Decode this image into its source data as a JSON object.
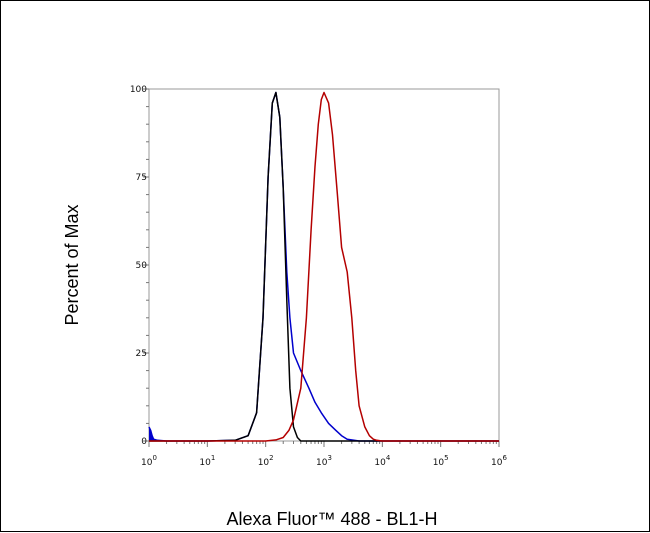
{
  "chart_data": {
    "type": "line",
    "title": "",
    "xlabel": "Alexa Fluor™ 488 - BL1-H",
    "ylabel": "Percent of Max",
    "x_scale": "log",
    "xlim": [
      1,
      1000000
    ],
    "ylim": [
      0,
      100
    ],
    "x_tick_values": [
      1,
      10,
      100,
      1000,
      10000,
      100000,
      1000000
    ],
    "x_tick_labels": [
      {
        "base": "10",
        "exp": "0"
      },
      {
        "base": "10",
        "exp": "1"
      },
      {
        "base": "10",
        "exp": "2"
      },
      {
        "base": "10",
        "exp": "3"
      },
      {
        "base": "10",
        "exp": "4"
      },
      {
        "base": "10",
        "exp": "5"
      },
      {
        "base": "10",
        "exp": "6"
      }
    ],
    "y_tick_values": [
      0,
      25,
      50,
      75,
      100
    ],
    "y_tick_labels": [
      "0",
      "25",
      "50",
      "75",
      "100"
    ],
    "grid": false,
    "legend": "none",
    "series": [
      {
        "color": "#0000cc",
        "x": [
          1,
          1.07,
          1.13,
          1.2,
          1.4,
          2,
          10,
          30,
          50,
          70,
          90,
          110,
          130,
          150,
          175,
          200,
          230,
          260,
          300,
          400,
          550,
          700,
          900,
          1200,
          1600,
          2000,
          2500,
          4000,
          10000,
          100000,
          1000000
        ],
        "y": [
          4,
          3,
          1.5,
          0.5,
          0.2,
          0,
          0,
          0.2,
          1.5,
          8,
          35,
          75,
          96,
          99,
          92,
          72,
          48,
          35,
          25,
          20,
          15,
          11,
          8,
          5,
          3,
          1.5,
          0.5,
          0,
          0,
          0,
          0
        ]
      },
      {
        "color": "#000000",
        "x": [
          1,
          10,
          30,
          50,
          70,
          90,
          110,
          130,
          150,
          175,
          200,
          230,
          260,
          300,
          350,
          400,
          1000000
        ],
        "y": [
          0,
          0,
          0.2,
          1.5,
          8,
          35,
          75,
          96,
          99,
          92,
          72,
          40,
          15,
          4,
          1,
          0,
          0
        ]
      },
      {
        "color": "#b40000",
        "x": [
          1,
          100,
          150,
          200,
          250,
          300,
          400,
          500,
          600,
          700,
          800,
          900,
          1000,
          1200,
          1400,
          1700,
          2000,
          2500,
          3000,
          3500,
          4000,
          5000,
          6000,
          7000,
          8000,
          10000,
          1000000
        ],
        "y": [
          0,
          0,
          0.3,
          1,
          3,
          6,
          15,
          35,
          60,
          78,
          90,
          97,
          99,
          96,
          87,
          70,
          55,
          48,
          35,
          20,
          10,
          4,
          1.5,
          0.5,
          0.2,
          0,
          0
        ]
      }
    ]
  }
}
